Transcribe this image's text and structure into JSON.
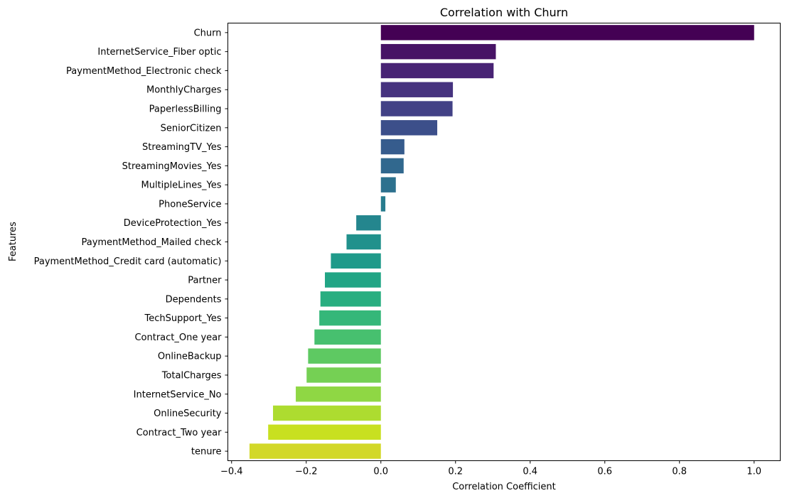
{
  "chart_data": {
    "type": "bar",
    "orientation": "horizontal",
    "title": "Correlation with Churn",
    "xlabel": "Correlation Coefficient",
    "ylabel": "Features",
    "xlim": [
      -0.41,
      1.07
    ],
    "xticks": [
      -0.4,
      -0.2,
      0.0,
      0.2,
      0.4,
      0.6,
      0.8,
      1.0
    ],
    "xtick_labels": [
      "−0.4",
      "−0.2",
      "0.0",
      "0.2",
      "0.4",
      "0.6",
      "0.8",
      "1.0"
    ],
    "grid": false,
    "palette": "viridis",
    "categories": [
      "Churn",
      "InternetService_Fiber optic",
      "PaymentMethod_Electronic check",
      "MonthlyCharges",
      "PaperlessBilling",
      "SeniorCitizen",
      "StreamingTV_Yes",
      "StreamingMovies_Yes",
      "MultipleLines_Yes",
      "PhoneService",
      "DeviceProtection_Yes",
      "PaymentMethod_Mailed check",
      "PaymentMethod_Credit card (automatic)",
      "Partner",
      "Dependents",
      "TechSupport_Yes",
      "Contract_One year",
      "OnlineBackup",
      "TotalCharges",
      "InternetService_No",
      "OnlineSecurity",
      "Contract_Two year",
      "tenure"
    ],
    "values": [
      1.0,
      0.308,
      0.302,
      0.193,
      0.192,
      0.151,
      0.063,
      0.061,
      0.04,
      0.012,
      -0.066,
      -0.092,
      -0.134,
      -0.15,
      -0.162,
      -0.165,
      -0.178,
      -0.195,
      -0.199,
      -0.228,
      -0.289,
      -0.302,
      -0.352
    ],
    "colors": [
      "#440154",
      "#471365",
      "#482374",
      "#46337f",
      "#424186",
      "#3c4f8a",
      "#365c8d",
      "#31688e",
      "#2d718e",
      "#287c8e",
      "#24868e",
      "#21918c",
      "#1f9a8a",
      "#21a585",
      "#28ae80",
      "#35b779",
      "#47c06f",
      "#5ec962",
      "#75d054",
      "#8fd744",
      "#addc30",
      "#c8e020",
      "#d2d829"
    ]
  }
}
